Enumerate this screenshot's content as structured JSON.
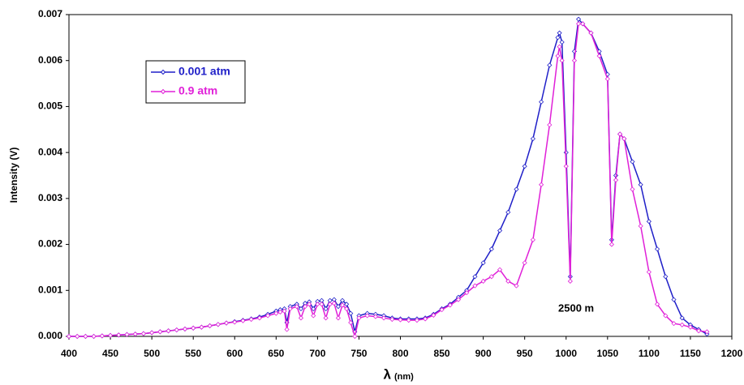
{
  "chart_data": {
    "type": "line",
    "y_label": "Intensity (V)",
    "x_label": "λ",
    "x_label_unit": "(nm)",
    "annotation": "2500 m",
    "legend": "upper left",
    "x": [
      400,
      410,
      420,
      430,
      440,
      450,
      460,
      470,
      480,
      490,
      500,
      510,
      520,
      530,
      540,
      550,
      560,
      570,
      580,
      590,
      600,
      610,
      620,
      630,
      640,
      650,
      655,
      660,
      663,
      667,
      675,
      680,
      685,
      690,
      695,
      700,
      705,
      710,
      715,
      720,
      725,
      730,
      735,
      740,
      745,
      750,
      760,
      770,
      780,
      790,
      800,
      810,
      820,
      830,
      840,
      850,
      860,
      870,
      880,
      890,
      900,
      910,
      920,
      930,
      940,
      950,
      960,
      970,
      980,
      990,
      992,
      995,
      1000,
      1005,
      1010,
      1015,
      1020,
      1030,
      1040,
      1050,
      1055,
      1060,
      1065,
      1070,
      1080,
      1090,
      1100,
      1110,
      1120,
      1130,
      1140,
      1150,
      1160,
      1170
    ],
    "series": [
      {
        "name": "0.001 atm",
        "color": "#1f1fc8",
        "values": [
          0,
          0,
          0,
          0,
          1e-05,
          2e-05,
          3e-05,
          4e-05,
          5e-05,
          6e-05,
          8e-05,
          0.0001,
          0.00012,
          0.00014,
          0.00016,
          0.00018,
          0.0002,
          0.00023,
          0.00026,
          0.00029,
          0.00032,
          0.00035,
          0.00038,
          0.00042,
          0.00048,
          0.00055,
          0.00058,
          0.0006,
          0.0003,
          0.00065,
          0.0007,
          0.0006,
          0.00072,
          0.00075,
          0.0006,
          0.00076,
          0.00078,
          0.0006,
          0.00078,
          0.0008,
          0.00065,
          0.00078,
          0.0007,
          0.0005,
          0.0001,
          0.00045,
          0.0005,
          0.00048,
          0.00045,
          0.0004,
          0.00038,
          0.00038,
          0.00038,
          0.0004,
          0.00048,
          0.0006,
          0.0007,
          0.00085,
          0.001,
          0.0013,
          0.0016,
          0.0019,
          0.0023,
          0.0027,
          0.0032,
          0.0037,
          0.0043,
          0.0051,
          0.0059,
          0.0065,
          0.0066,
          0.0064,
          0.004,
          0.0013,
          0.0062,
          0.0069,
          0.0068,
          0.0066,
          0.0062,
          0.0057,
          0.0021,
          0.0035,
          0.0044,
          0.0043,
          0.0038,
          0.0033,
          0.0025,
          0.0019,
          0.0013,
          0.0008,
          0.0004,
          0.00025,
          0.00015,
          5e-05
        ]
      },
      {
        "name": "0.9 atm",
        "color": "#e020d8",
        "values": [
          0,
          0,
          0,
          0,
          1e-05,
          2e-05,
          3e-05,
          4e-05,
          5e-05,
          6e-05,
          8e-05,
          0.0001,
          0.00012,
          0.00014,
          0.00016,
          0.00018,
          0.0002,
          0.00023,
          0.00026,
          0.00029,
          0.00031,
          0.00034,
          0.00037,
          0.0004,
          0.00045,
          0.0005,
          0.00053,
          0.00055,
          0.00015,
          0.0006,
          0.00065,
          0.0004,
          0.00065,
          0.0007,
          0.00045,
          0.0007,
          0.0007,
          0.0004,
          0.0007,
          0.00072,
          0.0004,
          0.00068,
          0.0006,
          0.0003,
          0.0,
          0.0004,
          0.00045,
          0.00043,
          0.0004,
          0.00037,
          0.00036,
          0.00035,
          0.00035,
          0.00038,
          0.00046,
          0.00058,
          0.00068,
          0.0008,
          0.00095,
          0.0011,
          0.0012,
          0.0013,
          0.00145,
          0.0012,
          0.0011,
          0.0016,
          0.0021,
          0.0033,
          0.0046,
          0.0061,
          0.0063,
          0.006,
          0.0037,
          0.0012,
          0.006,
          0.0068,
          0.0068,
          0.0066,
          0.0061,
          0.0056,
          0.002,
          0.0034,
          0.0044,
          0.0043,
          0.0032,
          0.0024,
          0.0014,
          0.0007,
          0.00045,
          0.00028,
          0.00025,
          0.0002,
          0.00012,
          0.0001
        ]
      }
    ],
    "xlim": [
      400,
      1200
    ],
    "xticks": [
      400,
      450,
      500,
      550,
      600,
      650,
      700,
      750,
      800,
      850,
      900,
      950,
      1000,
      1050,
      1100,
      1150,
      1200
    ],
    "ylim": [
      0,
      0.007
    ],
    "yticks": [
      {
        "value": 0,
        "label": "0.000"
      },
      {
        "value": 0.001,
        "label": "0.001"
      },
      {
        "value": 0.002,
        "label": "0.002"
      },
      {
        "value": 0.003,
        "label": "0.003"
      },
      {
        "value": 0.004,
        "label": "0.004"
      },
      {
        "value": 0.005,
        "label": "0.005"
      },
      {
        "value": 0.006,
        "label": "0.006"
      },
      {
        "value": 0.007,
        "label": "0.007"
      }
    ]
  }
}
